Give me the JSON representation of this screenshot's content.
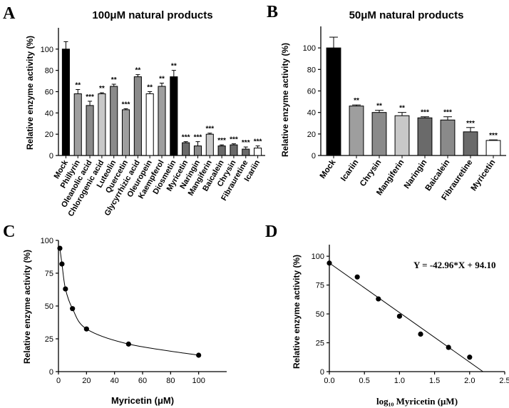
{
  "panels": [
    {
      "letter": "A"
    },
    {
      "letter": "B"
    },
    {
      "letter": "C"
    },
    {
      "letter": "D"
    }
  ],
  "chart_data": [
    {
      "panel": "A",
      "type": "bar",
      "title": "100μM natural products",
      "ylabel": "Relative enzyme activity (%)",
      "xlabel": "",
      "ylim": [
        0,
        120
      ],
      "yticks": [
        0,
        20,
        40,
        60,
        80,
        100
      ],
      "categories": [
        "Mock",
        "Phillyrin",
        "Oleanolic acid",
        "Chlorogenic acid",
        "Luteolin",
        "Quercetin",
        "Glycyrrhizic acid",
        "Oleuropein",
        "Kaempferol",
        "Diosmetin",
        "Myricetin",
        "Naringin",
        "Mangiferin",
        "Baicalein",
        "Chrysin",
        "Fibrauretine",
        "Icariin"
      ],
      "values": [
        100,
        58,
        47,
        58,
        65,
        43,
        74,
        58,
        65,
        74,
        12,
        9,
        20,
        9,
        10,
        6,
        7
      ],
      "errors": [
        7,
        4,
        4,
        1,
        2,
        1,
        2,
        2,
        3,
        6,
        1,
        4,
        1,
        1,
        1,
        2,
        2
      ],
      "significance": [
        "",
        "**",
        "***",
        "**",
        "**",
        "***",
        "**",
        "**",
        "**",
        "**",
        "***",
        "***",
        "***",
        "***",
        "***",
        "***",
        "***"
      ],
      "bar_colors": [
        "#000000",
        "#9e9e9e",
        "#8a8a8a",
        "#c8c8c8",
        "#8a8a8a",
        "#9e9e9e",
        "#8a8a8a",
        "#ffffff",
        "#9e9e9e",
        "#000000",
        "#6a6a6a",
        "#8a8a8a",
        "#c8c8c8",
        "#6a6a6a",
        "#6a6a6a",
        "#6a6a6a",
        "#ffffff"
      ]
    },
    {
      "panel": "B",
      "type": "bar",
      "title": "50μM natural products",
      "ylabel": "Relative enzyme activity (%)",
      "xlabel": "",
      "ylim": [
        0,
        120
      ],
      "yticks": [
        0,
        20,
        40,
        60,
        80,
        100
      ],
      "categories": [
        "Mock",
        "Icariin",
        "Chrysin",
        "Mangiferin",
        "Naringin",
        "Baicalein",
        "Fibrauretine",
        "Myricetin"
      ],
      "values": [
        100,
        46,
        40,
        37,
        35,
        33,
        22,
        14
      ],
      "errors": [
        10,
        1,
        2,
        3,
        1,
        3,
        4,
        0.5
      ],
      "significance": [
        "",
        "**",
        "**",
        "**",
        "***",
        "***",
        "***",
        "***"
      ],
      "bar_colors": [
        "#000000",
        "#9e9e9e",
        "#8a8a8a",
        "#c8c8c8",
        "#6a6a6a",
        "#8a8a8a",
        "#6a6a6a",
        "#ffffff"
      ]
    },
    {
      "panel": "C",
      "type": "scatter",
      "title": "",
      "xlabel": "Myricetin (μM)",
      "ylabel": "Relative enzyme activity (%)",
      "xlim": [
        0,
        120
      ],
      "ylim": [
        0,
        100
      ],
      "xticks": [
        0,
        20,
        40,
        60,
        80,
        100
      ],
      "yticks": [
        0,
        25,
        50,
        75,
        100
      ],
      "x": [
        1,
        2.5,
        5,
        10,
        20,
        50,
        100
      ],
      "y": [
        94,
        82,
        63,
        48,
        32.5,
        21,
        12.5
      ],
      "fit": "smooth"
    },
    {
      "panel": "D",
      "type": "scatter",
      "title": "",
      "xlabel": "log₁₀ Myricetin (μM)",
      "ylabel": "Relative enzyme activity (%)",
      "xlim": [
        0,
        2.5
      ],
      "ylim": [
        0,
        110
      ],
      "xticks": [
        0.0,
        0.5,
        1.0,
        1.5,
        2.0,
        2.5
      ],
      "xtick_labels": [
        "0.0",
        "0.5",
        "1.0",
        "1.5",
        "2.0",
        "2.5"
      ],
      "yticks": [
        0,
        25,
        50,
        75,
        100
      ],
      "x": [
        0,
        0.398,
        0.699,
        1.0,
        1.301,
        1.699,
        2.0
      ],
      "y": [
        94,
        82,
        63,
        48,
        32.5,
        21,
        12.5
      ],
      "equation": "Y = -42.96*X + 94.10",
      "fit_slope": -42.96,
      "fit_intercept": 94.1
    }
  ]
}
